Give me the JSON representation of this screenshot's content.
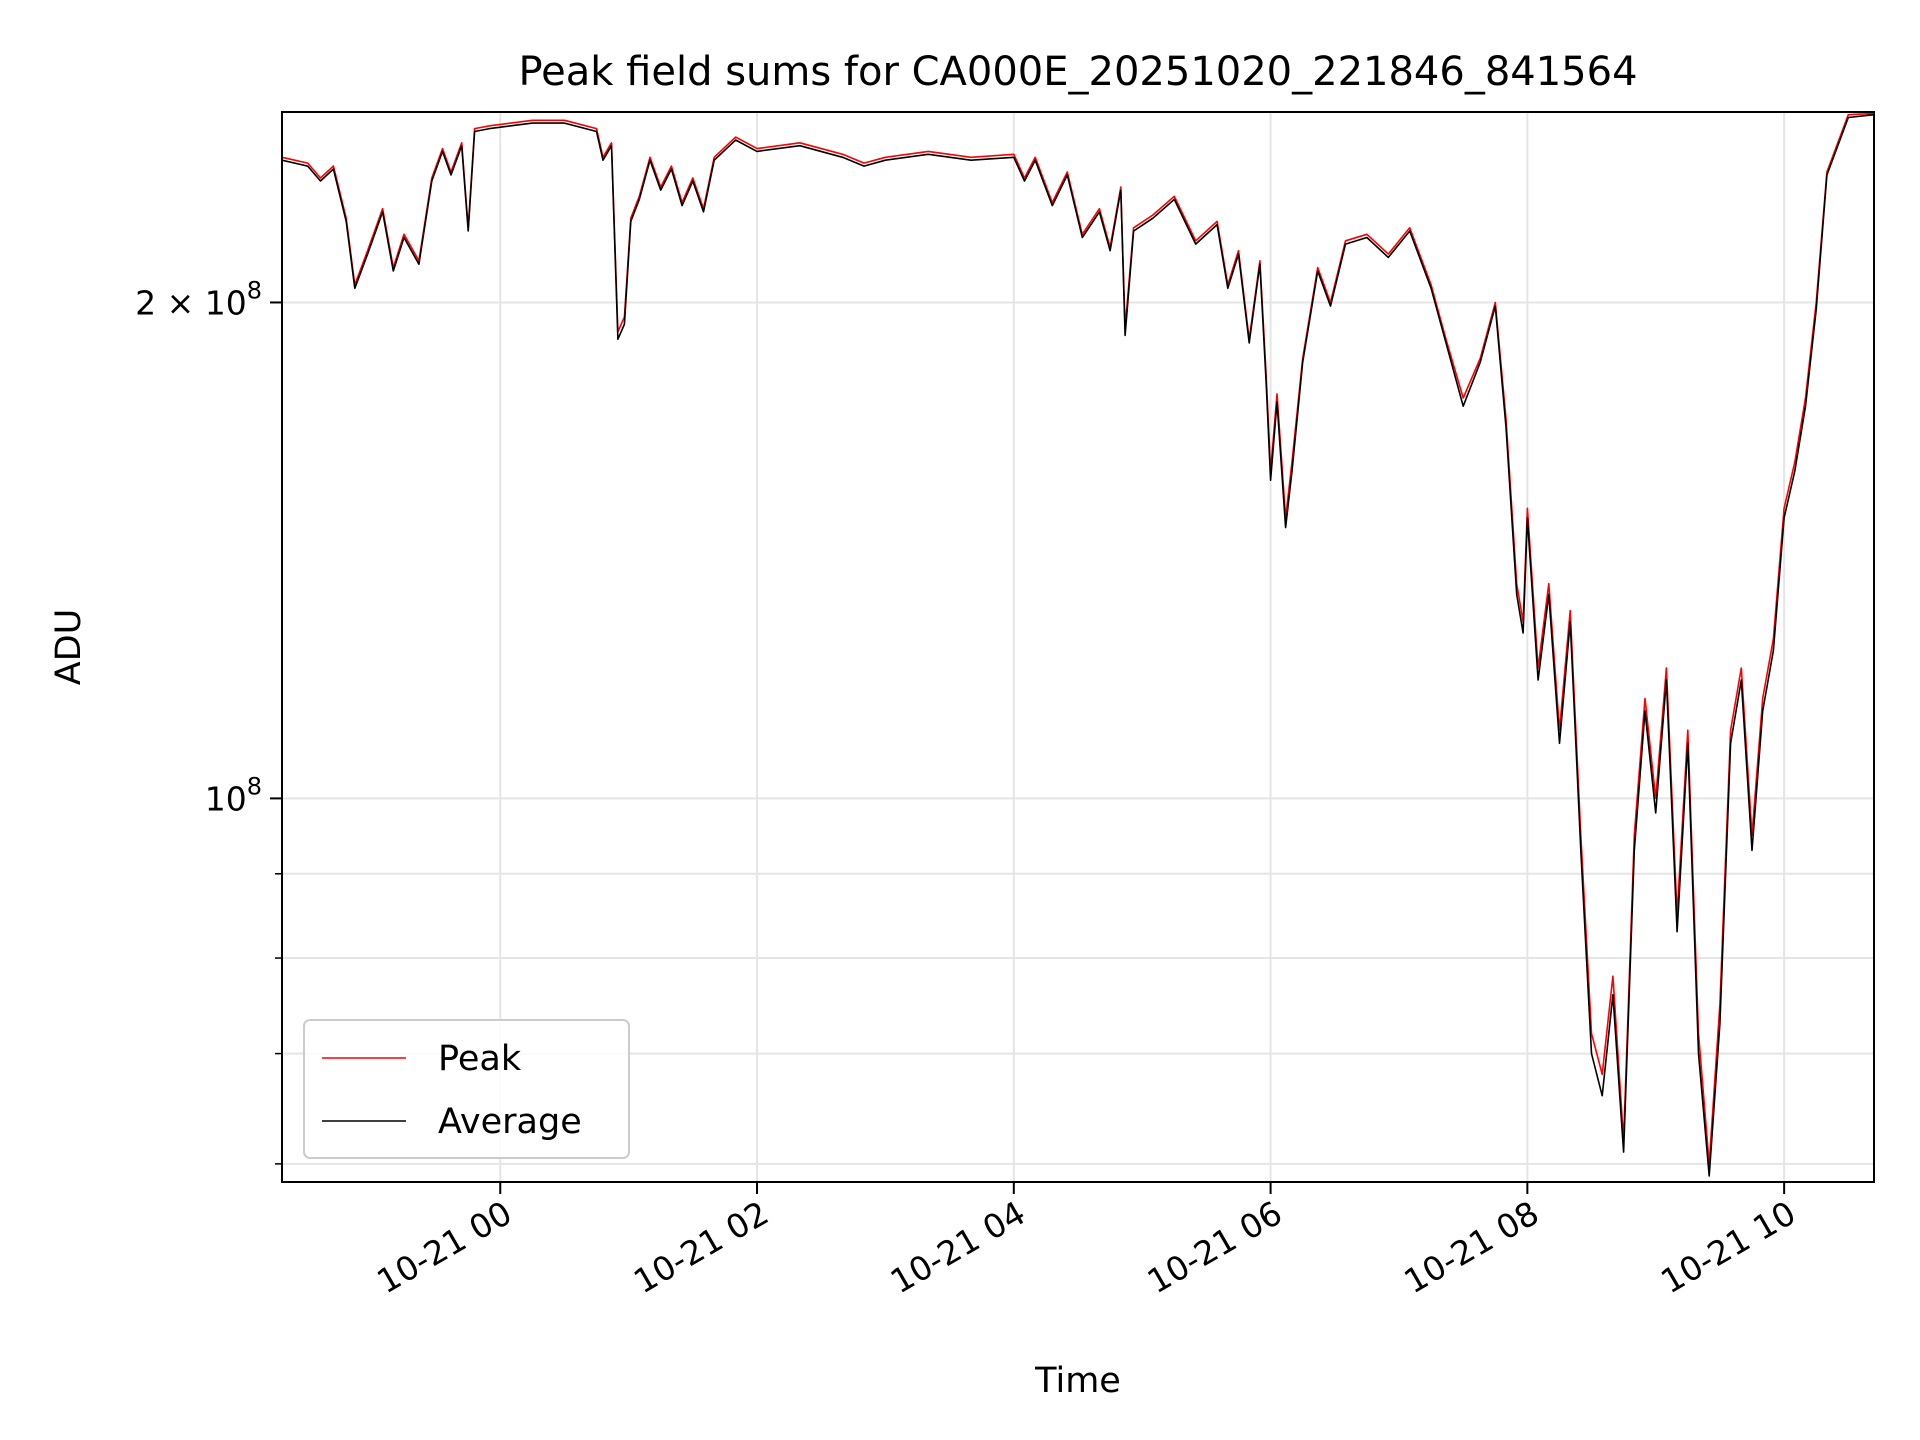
{
  "chart_data": {
    "type": "line",
    "title": "Peak field sums for CA000E_20251020_221846_841564",
    "xlabel": "Time",
    "ylabel": "ADU",
    "y_scale": "log",
    "ylim": [
      58500000,
      261000000
    ],
    "xlim": [
      "2025-10-20 22:18",
      "2025-10-21 10:42"
    ],
    "grid": true,
    "legend_position": "lower-left",
    "x_ticks": [
      {
        "at": "2025-10-21 00:00",
        "label": "10-21 00"
      },
      {
        "at": "2025-10-21 02:00",
        "label": "10-21 02"
      },
      {
        "at": "2025-10-21 04:00",
        "label": "10-21 04"
      },
      {
        "at": "2025-10-21 06:00",
        "label": "10-21 06"
      },
      {
        "at": "2025-10-21 08:00",
        "label": "10-21 08"
      },
      {
        "at": "2025-10-21 10:00",
        "label": "10-21 10"
      }
    ],
    "y_ticks": [
      {
        "value": 200000000,
        "label_base": "2 × 10",
        "label_exp": "8"
      },
      {
        "value": 100000000,
        "label_base": "10",
        "label_exp": "8"
      }
    ],
    "y_minor_ticks": [
      60000000,
      70000000,
      80000000,
      90000000
    ],
    "series": [
      {
        "name": "Peak",
        "color": "#ff0000",
        "points": [
          [
            "2025-10-20 22:18",
            245000000
          ],
          [
            "2025-10-20 22:30",
            243000000
          ],
          [
            "2025-10-20 22:36",
            238000000
          ],
          [
            "2025-10-20 22:42",
            242000000
          ],
          [
            "2025-10-20 22:48",
            225000000
          ],
          [
            "2025-10-20 22:52",
            205000000
          ],
          [
            "2025-10-20 22:58",
            215000000
          ],
          [
            "2025-10-20 23:05",
            228000000
          ],
          [
            "2025-10-20 23:10",
            210000000
          ],
          [
            "2025-10-20 23:15",
            220000000
          ],
          [
            "2025-10-20 23:22",
            212000000
          ],
          [
            "2025-10-20 23:28",
            238000000
          ],
          [
            "2025-10-20 23:33",
            248000000
          ],
          [
            "2025-10-20 23:37",
            240000000
          ],
          [
            "2025-10-20 23:42",
            250000000
          ],
          [
            "2025-10-20 23:45",
            222000000
          ],
          [
            "2025-10-20 23:48",
            255000000
          ],
          [
            "2025-10-20 23:55",
            256000000
          ],
          [
            "2025-10-21 00:15",
            258000000
          ],
          [
            "2025-10-21 00:30",
            258000000
          ],
          [
            "2025-10-21 00:45",
            255000000
          ],
          [
            "2025-10-21 00:48",
            245000000
          ],
          [
            "2025-10-21 00:52",
            250000000
          ],
          [
            "2025-10-21 00:55",
            192000000
          ],
          [
            "2025-10-21 00:58",
            196000000
          ],
          [
            "2025-10-21 01:01",
            225000000
          ],
          [
            "2025-10-21 01:05",
            232000000
          ],
          [
            "2025-10-21 01:10",
            245000000
          ],
          [
            "2025-10-21 01:15",
            235000000
          ],
          [
            "2025-10-21 01:20",
            242000000
          ],
          [
            "2025-10-21 01:25",
            230000000
          ],
          [
            "2025-10-21 01:30",
            238000000
          ],
          [
            "2025-10-21 01:35",
            228000000
          ],
          [
            "2025-10-21 01:40",
            245000000
          ],
          [
            "2025-10-21 01:50",
            252000000
          ],
          [
            "2025-10-21 02:00",
            248000000
          ],
          [
            "2025-10-21 02:20",
            250000000
          ],
          [
            "2025-10-21 02:40",
            246000000
          ],
          [
            "2025-10-21 02:50",
            243000000
          ],
          [
            "2025-10-21 03:00",
            245000000
          ],
          [
            "2025-10-21 03:20",
            247000000
          ],
          [
            "2025-10-21 03:40",
            245000000
          ],
          [
            "2025-10-21 04:00",
            246000000
          ],
          [
            "2025-10-21 04:05",
            238000000
          ],
          [
            "2025-10-21 04:10",
            245000000
          ],
          [
            "2025-10-21 04:18",
            230000000
          ],
          [
            "2025-10-21 04:25",
            240000000
          ],
          [
            "2025-10-21 04:32",
            220000000
          ],
          [
            "2025-10-21 04:40",
            228000000
          ],
          [
            "2025-10-21 04:45",
            216000000
          ],
          [
            "2025-10-21 04:50",
            235000000
          ],
          [
            "2025-10-21 04:52",
            193000000
          ],
          [
            "2025-10-21 04:56",
            222000000
          ],
          [
            "2025-10-21 05:05",
            226000000
          ],
          [
            "2025-10-21 05:15",
            232000000
          ],
          [
            "2025-10-21 05:25",
            218000000
          ],
          [
            "2025-10-21 05:35",
            224000000
          ],
          [
            "2025-10-21 05:40",
            205000000
          ],
          [
            "2025-10-21 05:45",
            215000000
          ],
          [
            "2025-10-21 05:50",
            190000000
          ],
          [
            "2025-10-21 05:55",
            212000000
          ],
          [
            "2025-10-21 05:58",
            180000000
          ],
          [
            "2025-10-21 06:00",
            158000000
          ],
          [
            "2025-10-21 06:03",
            176000000
          ],
          [
            "2025-10-21 06:07",
            148000000
          ],
          [
            "2025-10-21 06:10",
            160000000
          ],
          [
            "2025-10-21 06:15",
            185000000
          ],
          [
            "2025-10-21 06:22",
            210000000
          ],
          [
            "2025-10-21 06:28",
            200000000
          ],
          [
            "2025-10-21 06:35",
            218000000
          ],
          [
            "2025-10-21 06:45",
            220000000
          ],
          [
            "2025-10-21 06:55",
            214000000
          ],
          [
            "2025-10-21 07:05",
            222000000
          ],
          [
            "2025-10-21 07:15",
            205000000
          ],
          [
            "2025-10-21 07:22",
            190000000
          ],
          [
            "2025-10-21 07:30",
            175000000
          ],
          [
            "2025-10-21 07:38",
            185000000
          ],
          [
            "2025-10-21 07:45",
            200000000
          ],
          [
            "2025-10-21 07:50",
            170000000
          ],
          [
            "2025-10-21 07:55",
            135000000
          ],
          [
            "2025-10-21 07:58",
            128000000
          ],
          [
            "2025-10-21 08:00",
            150000000
          ],
          [
            "2025-10-21 08:05",
            120000000
          ],
          [
            "2025-10-21 08:10",
            135000000
          ],
          [
            "2025-10-21 08:15",
            110000000
          ],
          [
            "2025-10-21 08:20",
            130000000
          ],
          [
            "2025-10-21 08:25",
            95000000
          ],
          [
            "2025-10-21 08:30",
            72000000
          ],
          [
            "2025-10-21 08:35",
            68000000
          ],
          [
            "2025-10-21 08:40",
            78000000
          ],
          [
            "2025-10-21 08:45",
            62000000
          ],
          [
            "2025-10-21 08:50",
            95000000
          ],
          [
            "2025-10-21 08:55",
            115000000
          ],
          [
            "2025-10-21 09:00",
            100000000
          ],
          [
            "2025-10-21 09:05",
            120000000
          ],
          [
            "2025-10-21 09:10",
            85000000
          ],
          [
            "2025-10-21 09:15",
            110000000
          ],
          [
            "2025-10-21 09:20",
            72000000
          ],
          [
            "2025-10-21 09:25",
            60000000
          ],
          [
            "2025-10-21 09:30",
            75000000
          ],
          [
            "2025-10-21 09:35",
            110000000
          ],
          [
            "2025-10-21 09:40",
            120000000
          ],
          [
            "2025-10-21 09:45",
            95000000
          ],
          [
            "2025-10-21 09:50",
            115000000
          ],
          [
            "2025-10-21 09:55",
            125000000
          ],
          [
            "2025-10-21 10:00",
            150000000
          ],
          [
            "2025-10-21 10:05",
            160000000
          ],
          [
            "2025-10-21 10:10",
            175000000
          ],
          [
            "2025-10-21 10:15",
            200000000
          ],
          [
            "2025-10-21 10:20",
            240000000
          ],
          [
            "2025-10-21 10:30",
            260000000
          ],
          [
            "2025-10-21 10:42",
            260500000
          ]
        ]
      },
      {
        "name": "Average",
        "color": "#000000",
        "points": [
          [
            "2025-10-20 22:18",
            244000000
          ],
          [
            "2025-10-20 22:30",
            242000000
          ],
          [
            "2025-10-20 22:36",
            237000000
          ],
          [
            "2025-10-20 22:42",
            241000000
          ],
          [
            "2025-10-20 22:48",
            224000000
          ],
          [
            "2025-10-20 22:52",
            204000000
          ],
          [
            "2025-10-20 22:58",
            214000000
          ],
          [
            "2025-10-20 23:05",
            227000000
          ],
          [
            "2025-10-20 23:10",
            209000000
          ],
          [
            "2025-10-20 23:15",
            219000000
          ],
          [
            "2025-10-20 23:22",
            211000000
          ],
          [
            "2025-10-20 23:28",
            237000000
          ],
          [
            "2025-10-20 23:33",
            247000000
          ],
          [
            "2025-10-20 23:37",
            239000000
          ],
          [
            "2025-10-20 23:42",
            249000000
          ],
          [
            "2025-10-20 23:45",
            221000000
          ],
          [
            "2025-10-20 23:48",
            254000000
          ],
          [
            "2025-10-20 23:55",
            255000000
          ],
          [
            "2025-10-21 00:15",
            257000000
          ],
          [
            "2025-10-21 00:30",
            257000000
          ],
          [
            "2025-10-21 00:45",
            254000000
          ],
          [
            "2025-10-21 00:48",
            244000000
          ],
          [
            "2025-10-21 00:52",
            249000000
          ],
          [
            "2025-10-21 00:55",
            190000000
          ],
          [
            "2025-10-21 00:58",
            194000000
          ],
          [
            "2025-10-21 01:01",
            224000000
          ],
          [
            "2025-10-21 01:05",
            231000000
          ],
          [
            "2025-10-21 01:10",
            244000000
          ],
          [
            "2025-10-21 01:15",
            234000000
          ],
          [
            "2025-10-21 01:20",
            241000000
          ],
          [
            "2025-10-21 01:25",
            229000000
          ],
          [
            "2025-10-21 01:30",
            237000000
          ],
          [
            "2025-10-21 01:35",
            227000000
          ],
          [
            "2025-10-21 01:40",
            244000000
          ],
          [
            "2025-10-21 01:50",
            251000000
          ],
          [
            "2025-10-21 02:00",
            247000000
          ],
          [
            "2025-10-21 02:20",
            249000000
          ],
          [
            "2025-10-21 02:40",
            245000000
          ],
          [
            "2025-10-21 02:50",
            242000000
          ],
          [
            "2025-10-21 03:00",
            244000000
          ],
          [
            "2025-10-21 03:20",
            246000000
          ],
          [
            "2025-10-21 03:40",
            244000000
          ],
          [
            "2025-10-21 04:00",
            245000000
          ],
          [
            "2025-10-21 04:05",
            237000000
          ],
          [
            "2025-10-21 04:10",
            244000000
          ],
          [
            "2025-10-21 04:18",
            229000000
          ],
          [
            "2025-10-21 04:25",
            239000000
          ],
          [
            "2025-10-21 04:32",
            219000000
          ],
          [
            "2025-10-21 04:40",
            227000000
          ],
          [
            "2025-10-21 04:45",
            215000000
          ],
          [
            "2025-10-21 04:50",
            234000000
          ],
          [
            "2025-10-21 04:52",
            191000000
          ],
          [
            "2025-10-21 04:56",
            221000000
          ],
          [
            "2025-10-21 05:05",
            225000000
          ],
          [
            "2025-10-21 05:15",
            231000000
          ],
          [
            "2025-10-21 05:25",
            217000000
          ],
          [
            "2025-10-21 05:35",
            223000000
          ],
          [
            "2025-10-21 05:40",
            204000000
          ],
          [
            "2025-10-21 05:45",
            214000000
          ],
          [
            "2025-10-21 05:50",
            189000000
          ],
          [
            "2025-10-21 05:55",
            211000000
          ],
          [
            "2025-10-21 05:58",
            178000000
          ],
          [
            "2025-10-21 06:00",
            156000000
          ],
          [
            "2025-10-21 06:03",
            174000000
          ],
          [
            "2025-10-21 06:07",
            146000000
          ],
          [
            "2025-10-21 06:10",
            158000000
          ],
          [
            "2025-10-21 06:15",
            184000000
          ],
          [
            "2025-10-21 06:22",
            209000000
          ],
          [
            "2025-10-21 06:28",
            199000000
          ],
          [
            "2025-10-21 06:35",
            217000000
          ],
          [
            "2025-10-21 06:45",
            219000000
          ],
          [
            "2025-10-21 06:55",
            213000000
          ],
          [
            "2025-10-21 07:05",
            221000000
          ],
          [
            "2025-10-21 07:15",
            204000000
          ],
          [
            "2025-10-21 07:22",
            189000000
          ],
          [
            "2025-10-21 07:30",
            173000000
          ],
          [
            "2025-10-21 07:38",
            184000000
          ],
          [
            "2025-10-21 07:45",
            199000000
          ],
          [
            "2025-10-21 07:50",
            168000000
          ],
          [
            "2025-10-21 07:55",
            133000000
          ],
          [
            "2025-10-21 07:58",
            126000000
          ],
          [
            "2025-10-21 08:00",
            148000000
          ],
          [
            "2025-10-21 08:05",
            118000000
          ],
          [
            "2025-10-21 08:10",
            133000000
          ],
          [
            "2025-10-21 08:15",
            108000000
          ],
          [
            "2025-10-21 08:20",
            128000000
          ],
          [
            "2025-10-21 08:25",
            93000000
          ],
          [
            "2025-10-21 08:30",
            70000000
          ],
          [
            "2025-10-21 08:35",
            66000000
          ],
          [
            "2025-10-21 08:40",
            76000000
          ],
          [
            "2025-10-21 08:45",
            61000000
          ],
          [
            "2025-10-21 08:50",
            93000000
          ],
          [
            "2025-10-21 08:55",
            113000000
          ],
          [
            "2025-10-21 09:00",
            98000000
          ],
          [
            "2025-10-21 09:05",
            118000000
          ],
          [
            "2025-10-21 09:10",
            83000000
          ],
          [
            "2025-10-21 09:15",
            108000000
          ],
          [
            "2025-10-21 09:20",
            70000000
          ],
          [
            "2025-10-21 09:25",
            59000000
          ],
          [
            "2025-10-21 09:30",
            73000000
          ],
          [
            "2025-10-21 09:35",
            108000000
          ],
          [
            "2025-10-21 09:40",
            118000000
          ],
          [
            "2025-10-21 09:45",
            93000000
          ],
          [
            "2025-10-21 09:50",
            113000000
          ],
          [
            "2025-10-21 09:55",
            123000000
          ],
          [
            "2025-10-21 10:00",
            148000000
          ],
          [
            "2025-10-21 10:05",
            158000000
          ],
          [
            "2025-10-21 10:10",
            173000000
          ],
          [
            "2025-10-21 10:15",
            198000000
          ],
          [
            "2025-10-21 10:20",
            239000000
          ],
          [
            "2025-10-21 10:30",
            259000000
          ],
          [
            "2025-10-21 10:42",
            260000000
          ]
        ]
      }
    ]
  }
}
